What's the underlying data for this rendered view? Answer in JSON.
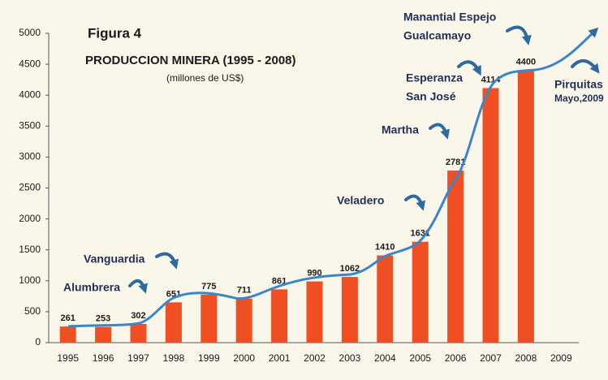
{
  "chart_data": {
    "type": "bar",
    "figure_label": "Figura 4",
    "title": "PRODUCCION MINERA  (1995 - 2008)",
    "subtitle": "(millones de US$)",
    "categories": [
      "1995",
      "1996",
      "1997",
      "1998",
      "1999",
      "2000",
      "2001",
      "2002",
      "2003",
      "2004",
      "2005",
      "2006",
      "2007",
      "2008",
      "2009"
    ],
    "values": [
      261,
      253,
      302,
      651,
      775,
      711,
      861,
      990,
      1062,
      1410,
      1631,
      2781,
      4114,
      4400,
      null
    ],
    "color": "#f04e23",
    "ylim": [
      0,
      5000
    ],
    "yticks": [
      0,
      500,
      1000,
      1500,
      2000,
      2500,
      3000,
      3500,
      4000,
      4500,
      5000
    ],
    "annotations": [
      "Alumbrera",
      "Vanguardia",
      "Veladero",
      "Martha",
      "Esperanza",
      "San José",
      "Manantial Espejo",
      "Gualcamayo",
      "Pirquitas",
      "Mayo,2009"
    ]
  }
}
